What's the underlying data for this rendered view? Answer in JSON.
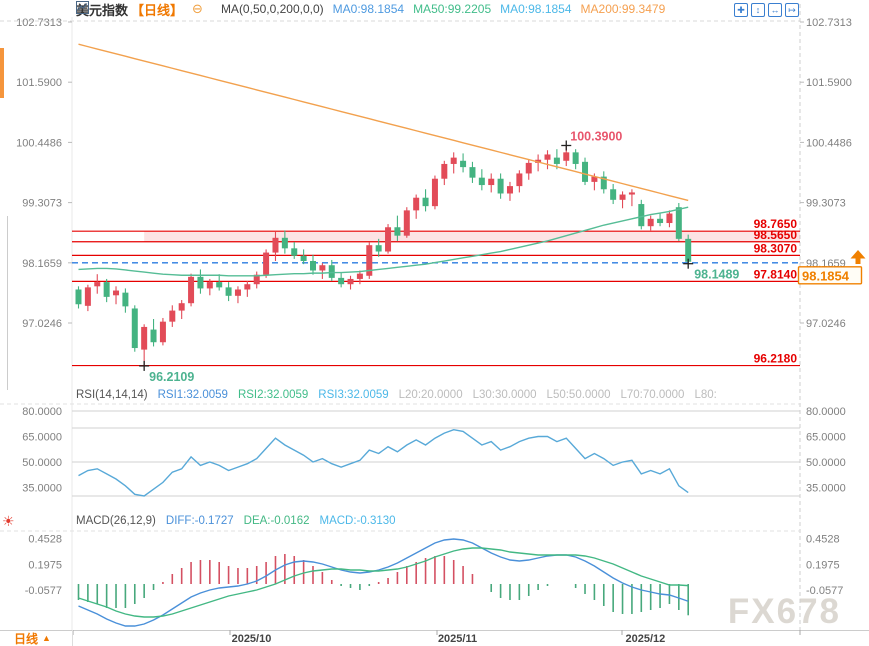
{
  "header": {
    "symbol": "美元指数",
    "period_tag": "【日线】",
    "collapse_icon": "⊖",
    "ma_settings": "MA(0,50,0,200,0,0)",
    "ma_values": [
      {
        "text": "MA0:98.1854",
        "color": "#4e9ae0"
      },
      {
        "text": "MA50:99.2205",
        "color": "#41bd8a"
      },
      {
        "text": "MA0:98.1854",
        "color": "#4cb8e8"
      },
      {
        "text": "MA200:99.3479",
        "color": "#f5a050"
      }
    ]
  },
  "toolbar": {
    "icons": [
      {
        "name": "pan-tool-icon",
        "glyph": "✚"
      },
      {
        "name": "zoom-vertical-icon",
        "glyph": "↕"
      },
      {
        "name": "zoom-horizontal-icon",
        "glyph": "↔"
      },
      {
        "name": "export-icon",
        "glyph": "↦"
      }
    ]
  },
  "watermark": "FX678",
  "footer": {
    "period_label": "日线",
    "period_arrow": "▲"
  },
  "colors": {
    "up": "#e24b58",
    "down": "#44b381",
    "ma200": "#f2a14e",
    "ma50": "#56bd96",
    "level": "#e60000",
    "band": "rgba(231,35,48,0.13)",
    "dashed_line": "#2b7ce0",
    "rsi_line": "#58a9d8",
    "diff": "#4a90d9",
    "dea": "#43b884",
    "hist_up": "#d45062",
    "hist_down": "#47a87c",
    "high_label": "#e8566d",
    "low_label": "#4db390",
    "current_box": "#f08000",
    "axis_text": "#808080",
    "date_text": "#444444"
  },
  "chart_data": {
    "type": "candlestick",
    "title": "美元指数 日线 (US Dollar Index Daily)",
    "panels": [
      "price+MA",
      "RSI",
      "MACD"
    ],
    "x_axis": {
      "months": [
        {
          "label": "2025/10",
          "index": 16
        },
        {
          "label": "2025/11",
          "index": 38
        },
        {
          "label": "2025/12",
          "index": 58
        }
      ]
    },
    "price_axis_ticks": [
      "102.7313",
      "101.5900",
      "100.4486",
      "99.3073",
      "98.1659",
      "97.0246"
    ],
    "candles": [
      [
        97.66,
        97.72,
        97.3,
        97.38
      ],
      [
        97.35,
        97.75,
        97.25,
        97.7
      ],
      [
        97.72,
        97.95,
        97.58,
        97.8
      ],
      [
        97.8,
        97.86,
        97.42,
        97.52
      ],
      [
        97.55,
        97.72,
        97.38,
        97.64
      ],
      [
        97.6,
        97.68,
        97.22,
        97.34
      ],
      [
        97.3,
        97.36,
        96.48,
        96.55
      ],
      [
        96.52,
        97.0,
        96.2109,
        96.95
      ],
      [
        96.9,
        97.1,
        96.58,
        96.66
      ],
      [
        96.66,
        97.12,
        96.6,
        97.05
      ],
      [
        97.05,
        97.36,
        96.95,
        97.26
      ],
      [
        97.26,
        97.46,
        97.1,
        97.4
      ],
      [
        97.4,
        97.96,
        97.34,
        97.9
      ],
      [
        97.9,
        98.04,
        97.58,
        97.68
      ],
      [
        97.68,
        97.86,
        97.55,
        97.8
      ],
      [
        97.8,
        97.95,
        97.64,
        97.7
      ],
      [
        97.7,
        97.8,
        97.44,
        97.54
      ],
      [
        97.54,
        97.72,
        97.4,
        97.66
      ],
      [
        97.66,
        97.82,
        97.52,
        97.76
      ],
      [
        97.76,
        98.0,
        97.68,
        97.94
      ],
      [
        97.94,
        98.42,
        97.88,
        98.36
      ],
      [
        98.36,
        98.75,
        98.2,
        98.64
      ],
      [
        98.64,
        98.78,
        98.34,
        98.44
      ],
      [
        98.44,
        98.56,
        98.24,
        98.3
      ],
      [
        98.3,
        98.42,
        98.14,
        98.2
      ],
      [
        98.2,
        98.32,
        97.94,
        98.02
      ],
      [
        98.02,
        98.16,
        97.86,
        98.12
      ],
      [
        98.12,
        98.22,
        97.82,
        97.88
      ],
      [
        97.88,
        97.98,
        97.7,
        97.76
      ],
      [
        97.76,
        97.92,
        97.66,
        97.86
      ],
      [
        97.86,
        98.02,
        97.76,
        97.96
      ],
      [
        97.92,
        98.56,
        97.86,
        98.5
      ],
      [
        98.5,
        98.62,
        98.28,
        98.38
      ],
      [
        98.38,
        98.9,
        98.34,
        98.84
      ],
      [
        98.84,
        99.06,
        98.58,
        98.68
      ],
      [
        98.68,
        99.22,
        98.64,
        99.16
      ],
      [
        99.16,
        99.46,
        99.0,
        99.4
      ],
      [
        99.4,
        99.56,
        99.14,
        99.24
      ],
      [
        99.24,
        99.82,
        99.18,
        99.76
      ],
      [
        99.76,
        100.1,
        99.64,
        100.04
      ],
      [
        100.04,
        100.26,
        99.86,
        100.16
      ],
      [
        100.1,
        100.24,
        99.88,
        99.98
      ],
      [
        99.98,
        100.08,
        99.68,
        99.78
      ],
      [
        99.78,
        99.94,
        99.54,
        99.64
      ],
      [
        99.64,
        99.86,
        99.5,
        99.76
      ],
      [
        99.76,
        99.86,
        99.38,
        99.48
      ],
      [
        99.48,
        99.7,
        99.34,
        99.62
      ],
      [
        99.62,
        99.92,
        99.5,
        99.86
      ],
      [
        99.86,
        100.12,
        99.74,
        100.06
      ],
      [
        100.06,
        100.22,
        99.9,
        100.12
      ],
      [
        100.12,
        100.3,
        99.94,
        100.22
      ],
      [
        100.16,
        100.32,
        99.94,
        100.04
      ],
      [
        100.1,
        100.39,
        100.0,
        100.26
      ],
      [
        100.26,
        100.32,
        99.94,
        100.04
      ],
      [
        100.08,
        100.16,
        99.64,
        99.7
      ],
      [
        99.7,
        99.86,
        99.54,
        99.8
      ],
      [
        99.8,
        99.9,
        99.48,
        99.56
      ],
      [
        99.56,
        99.66,
        99.28,
        99.36
      ],
      [
        99.36,
        99.52,
        99.2,
        99.46
      ],
      [
        99.46,
        99.56,
        99.24,
        99.5
      ],
      [
        99.28,
        99.36,
        98.8,
        98.86
      ],
      [
        98.86,
        99.06,
        98.78,
        99.0
      ],
      [
        99.0,
        99.1,
        98.86,
        98.92
      ],
      [
        98.92,
        99.16,
        98.84,
        99.1
      ],
      [
        99.22,
        99.3,
        98.58,
        98.62
      ],
      [
        98.62,
        98.7,
        98.1489,
        98.1854
      ]
    ],
    "ma50": [
      98.04,
      98.05,
      98.06,
      98.06,
      98.05,
      98.03,
      98.01,
      97.99,
      97.97,
      97.95,
      97.94,
      97.93,
      97.93,
      97.93,
      97.93,
      97.93,
      97.92,
      97.92,
      97.92,
      97.92,
      97.93,
      97.94,
      97.95,
      97.96,
      97.96,
      97.97,
      97.97,
      97.98,
      97.98,
      97.99,
      98.0,
      98.02,
      98.04,
      98.06,
      98.08,
      98.1,
      98.12,
      98.14,
      98.17,
      98.2,
      98.23,
      98.26,
      98.29,
      98.32,
      98.35,
      98.38,
      98.42,
      98.46,
      98.5,
      98.54,
      98.58,
      98.63,
      98.68,
      98.73,
      98.78,
      98.83,
      98.88,
      98.92,
      98.96,
      99.0,
      99.04,
      99.08,
      99.11,
      99.14,
      99.18,
      99.22
    ],
    "ma200": {
      "start": 102.31,
      "end": 99.348
    },
    "levels": {
      "lines": [
        "98.7650",
        "98.5650",
        "98.3070",
        "97.8140",
        "96.2180"
      ],
      "dashed": "98.1659",
      "band": {
        "top": "98.7650",
        "bottom": "98.5650",
        "start_index": 7
      }
    },
    "annotations": {
      "high": {
        "text": "100.3900",
        "price": 100.39,
        "index": 52
      },
      "low": {
        "text": "96.2109",
        "price": 96.2109,
        "index": 7
      },
      "last_low": {
        "text": "98.1489",
        "price": 98.1489,
        "index": 65
      },
      "current": {
        "text": "98.1854",
        "price": 98.1854
      }
    },
    "rsi": {
      "header": "RSI(14,14,14)",
      "series": [
        {
          "label": "RSI1:32.0059",
          "color": "#4a90d9"
        },
        {
          "label": "RSI2:32.0059",
          "color": "#41bd8a"
        },
        {
          "label": "RSI3:32.0059",
          "color": "#4cb8e8"
        }
      ],
      "level_labels": [
        "L20:20.0000",
        "L30:30.0000",
        "L50:50.0000",
        "L70:70.0000",
        "L80:"
      ],
      "ticks": [
        "80.0000",
        "65.0000",
        "50.0000",
        "35.0000"
      ],
      "hlines": [
        80,
        70,
        50,
        30
      ],
      "values": [
        42,
        45,
        46,
        43,
        40,
        36,
        31,
        30,
        34,
        38,
        44,
        46,
        53,
        48,
        50,
        48,
        45,
        47,
        49,
        52,
        58,
        64,
        60,
        57,
        54,
        50,
        52,
        49,
        47,
        49,
        51,
        57,
        55,
        59,
        56,
        60,
        63,
        60,
        64,
        67,
        69,
        68,
        64,
        60,
        62,
        57,
        59,
        62,
        64,
        65,
        65,
        62,
        64,
        58,
        52,
        55,
        52,
        48,
        50,
        51,
        43,
        45,
        43,
        46,
        36,
        32
      ]
    },
    "macd": {
      "header": "MACD(26,12,9)",
      "diff_label": "DIFF:-0.1727",
      "dea_label": "DEA:-0.0162",
      "macd_label": "MACD:-0.3130",
      "ticks": [
        "0.4528",
        "0.1975",
        "-0.0577"
      ],
      "diff": [
        -0.22,
        -0.26,
        -0.3,
        -0.35,
        -0.39,
        -0.42,
        -0.42,
        -0.4,
        -0.36,
        -0.31,
        -0.25,
        -0.19,
        -0.13,
        -0.09,
        -0.06,
        -0.04,
        -0.03,
        -0.02,
        0.0,
        0.03,
        0.08,
        0.14,
        0.19,
        0.22,
        0.23,
        0.22,
        0.2,
        0.17,
        0.14,
        0.12,
        0.11,
        0.12,
        0.14,
        0.17,
        0.21,
        0.26,
        0.31,
        0.36,
        0.41,
        0.44,
        0.45,
        0.44,
        0.41,
        0.36,
        0.31,
        0.27,
        0.24,
        0.23,
        0.24,
        0.26,
        0.28,
        0.29,
        0.29,
        0.27,
        0.23,
        0.18,
        0.12,
        0.06,
        0.01,
        -0.03,
        -0.06,
        -0.08,
        -0.1,
        -0.11,
        -0.14,
        -0.1727
      ],
      "dea": [
        -0.14,
        -0.17,
        -0.2,
        -0.23,
        -0.27,
        -0.3,
        -0.32,
        -0.33,
        -0.33,
        -0.32,
        -0.3,
        -0.27,
        -0.24,
        -0.21,
        -0.18,
        -0.15,
        -0.12,
        -0.1,
        -0.08,
        -0.06,
        -0.03,
        0.0,
        0.04,
        0.08,
        0.11,
        0.13,
        0.14,
        0.15,
        0.15,
        0.14,
        0.14,
        0.13,
        0.13,
        0.14,
        0.15,
        0.17,
        0.2,
        0.23,
        0.27,
        0.3,
        0.33,
        0.35,
        0.36,
        0.36,
        0.35,
        0.34,
        0.32,
        0.31,
        0.3,
        0.29,
        0.29,
        0.29,
        0.29,
        0.29,
        0.28,
        0.26,
        0.23,
        0.2,
        0.16,
        0.12,
        0.08,
        0.05,
        0.02,
        -0.01,
        -0.01,
        -0.0162
      ]
    }
  }
}
